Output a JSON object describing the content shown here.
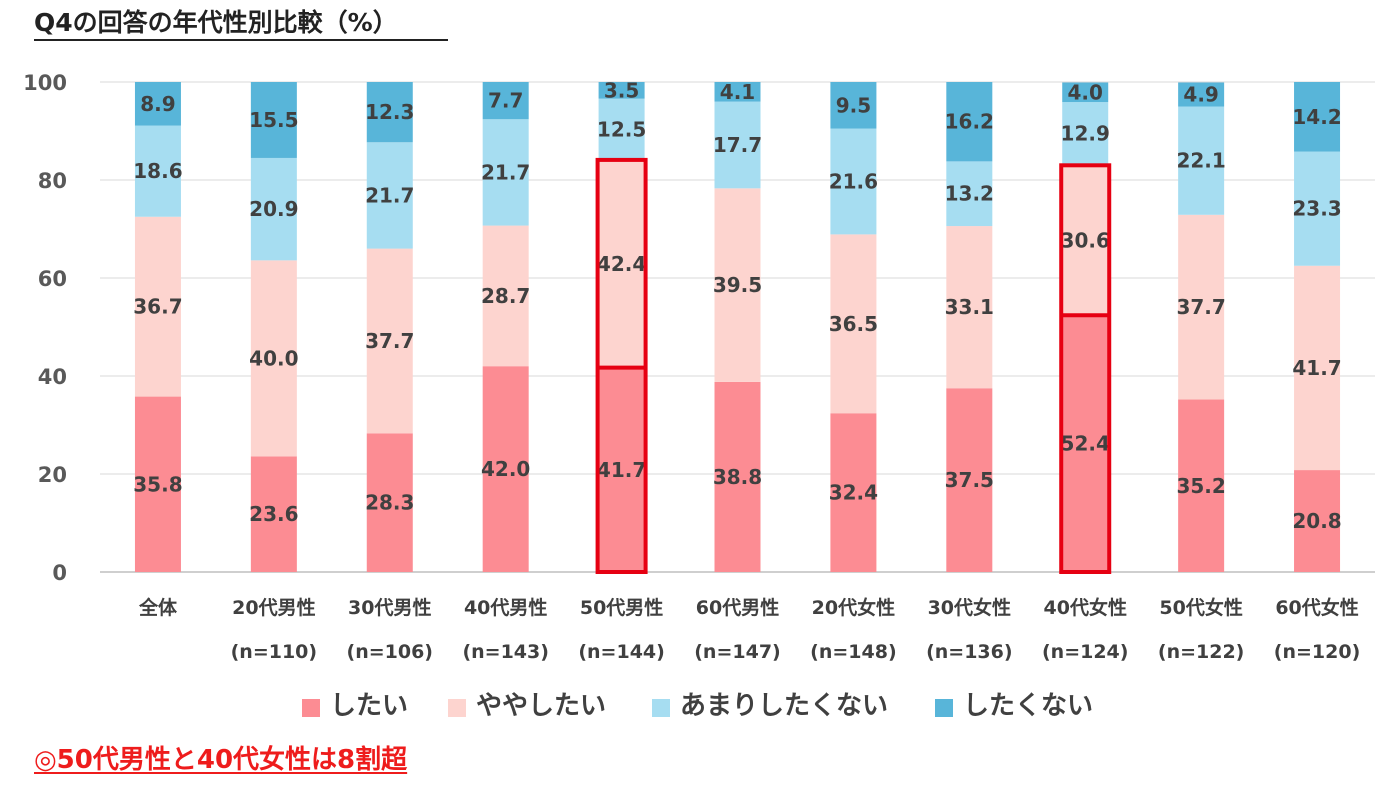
{
  "title": "Q4の回答の年代性別比較（%）",
  "legend": [
    {
      "label": "したい",
      "color": "#fc8c93"
    },
    {
      "label": "ややしたい",
      "color": "#fdd4cf"
    },
    {
      "label": "あまりしたくない",
      "color": "#a6ddf1"
    },
    {
      "label": "したくない",
      "color": "#58b5d9"
    }
  ],
  "footnote": "◎50代男性と40代女性は8割超",
  "highlight_color": "#e60012",
  "chart_data": {
    "type": "bar",
    "stacked": true,
    "title": "Q4の回答の年代性別比較（%）",
    "categories": [
      "全体",
      "20代男性",
      "30代男性",
      "40代男性",
      "50代男性",
      "60代男性",
      "20代女性",
      "30代女性",
      "40代女性",
      "50代女性",
      "60代女性"
    ],
    "category_counts": [
      "",
      "(n=110)",
      "(n=106)",
      "(n=143)",
      "(n=144)",
      "(n=147)",
      "(n=148)",
      "(n=136)",
      "(n=124)",
      "(n=122)",
      "(n=120)"
    ],
    "series": [
      {
        "name": "したい",
        "color": "#fc8c93",
        "values": [
          35.8,
          23.6,
          28.3,
          42.0,
          41.7,
          38.8,
          32.4,
          37.5,
          52.4,
          35.2,
          20.8
        ]
      },
      {
        "name": "ややしたい",
        "color": "#fdd4cf",
        "values": [
          36.7,
          40.0,
          37.7,
          28.7,
          42.4,
          39.5,
          36.5,
          33.1,
          30.6,
          37.7,
          41.7
        ]
      },
      {
        "name": "あまりしたくない",
        "color": "#a6ddf1",
        "values": [
          18.6,
          20.9,
          21.7,
          21.7,
          12.5,
          17.7,
          21.6,
          13.2,
          12.9,
          22.1,
          23.3
        ]
      },
      {
        "name": "したくない",
        "color": "#58b5d9",
        "values": [
          8.9,
          15.5,
          12.3,
          7.7,
          3.5,
          4.1,
          9.5,
          16.2,
          4.0,
          4.9,
          14.2
        ]
      }
    ],
    "value_labels": [
      [
        "35.8",
        "23.6",
        "28.3",
        "42.0",
        "41.7",
        "38.8",
        "32.4",
        "37.5",
        "52.4",
        "35.2",
        "20.8"
      ],
      [
        "36.7",
        "40.0",
        "37.7",
        "28.7",
        "42.4",
        "39.5",
        "36.5",
        "33.1",
        "30.6",
        "37.7",
        "41.7"
      ],
      [
        "18.6",
        "20.9",
        "21.7",
        "21.7",
        "12.5",
        "17.7",
        "21.6",
        "13.2",
        "12.9",
        "22.1",
        "23.3"
      ],
      [
        "8.9",
        "15.5",
        "12.3",
        "7.7",
        "3.5",
        "4.1",
        "9.5",
        "16.2",
        "4.0",
        "4.9",
        "14.2"
      ]
    ],
    "ylim": [
      0,
      100
    ],
    "yticks": [
      "0",
      "20",
      "40",
      "60",
      "80",
      "100"
    ],
    "ytick_values": [
      0,
      20,
      40,
      60,
      80,
      100
    ],
    "grid": true,
    "legend_position": "bottom",
    "highlighted_categories": [
      "50代男性",
      "40代女性"
    ],
    "highlighted_series_count": 2
  }
}
